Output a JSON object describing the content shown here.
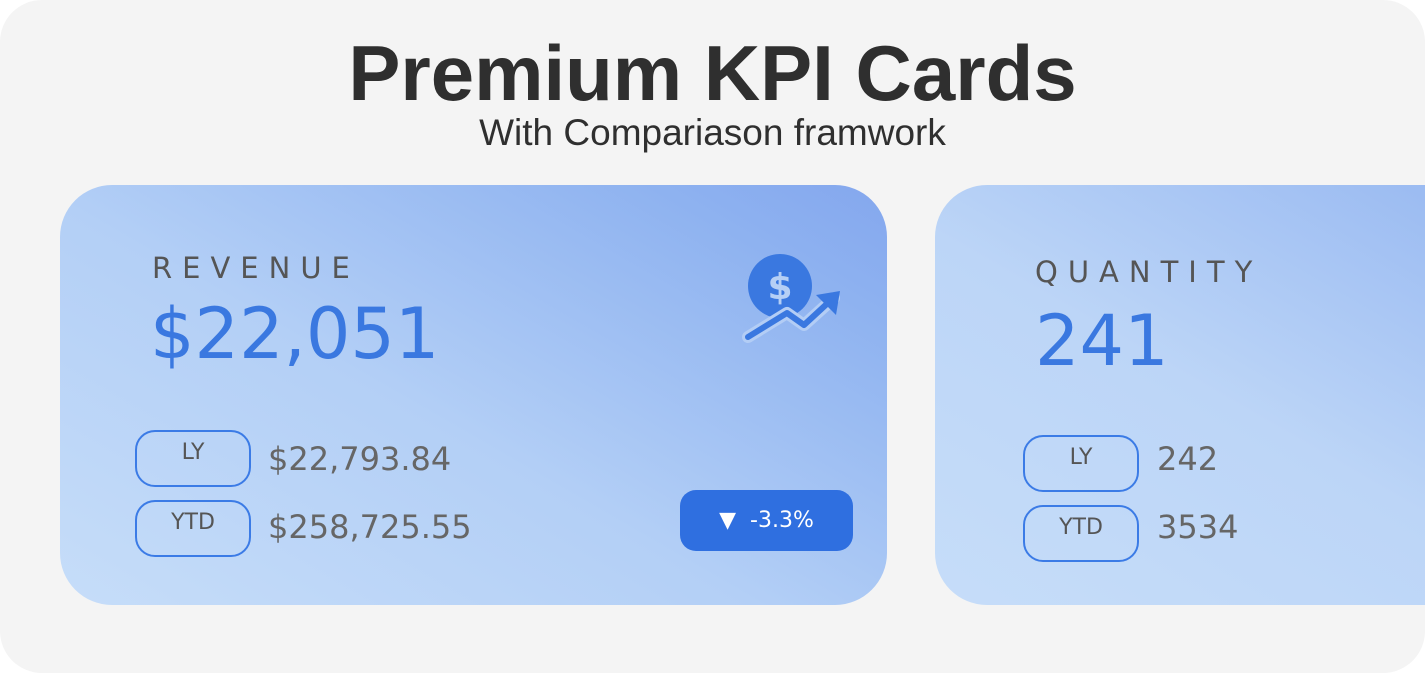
{
  "header": {
    "title": "Premium KPI Cards",
    "subtitle": "With Compariason framwork"
  },
  "colors": {
    "accent": "#3a78e0",
    "badge": "#2f6fe0"
  },
  "cards": [
    {
      "label": "REVENUE",
      "value": "$22,051",
      "icon": "dollar-trend-up-icon",
      "ly_label": "LY",
      "ly_value": "$22,793.84",
      "ytd_label": "YTD",
      "ytd_value": "$258,725.55",
      "change_arrow": "▼",
      "change": "-3.3%"
    },
    {
      "label": "QUANTITY",
      "value": "241",
      "ly_label": "LY",
      "ly_value": "242",
      "ytd_label": "YTD",
      "ytd_value": "3534"
    }
  ]
}
